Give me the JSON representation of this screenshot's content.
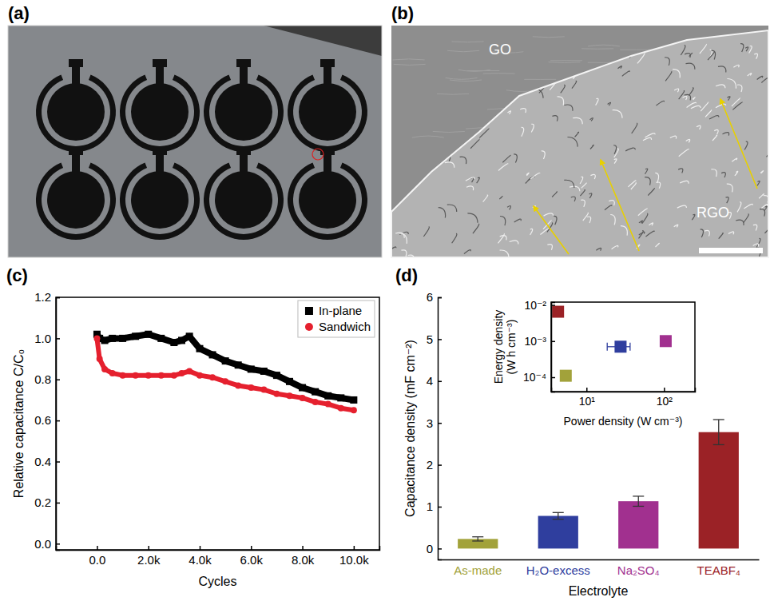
{
  "images": [
    {
      "panel_label": "(a)"
    },
    {
      "panel_label": "(b)",
      "texts": [
        "GO",
        "RGO"
      ]
    }
  ],
  "chart_data": [
    {
      "type": "line",
      "panel_label": "(c)",
      "x_label": "Cycles",
      "y_label": "Relative capacitance C/C₀",
      "x": [
        0,
        100,
        300,
        600,
        1000,
        1500,
        2000,
        2500,
        3000,
        3300,
        3600,
        4000,
        4500,
        5000,
        5500,
        6000,
        6500,
        7000,
        7500,
        8000,
        8500,
        9000,
        9500,
        10000
      ],
      "xlim": [
        -1600,
        11000
      ],
      "xticks": [
        {
          "value": 0,
          "label": "0.0"
        },
        {
          "value": 2000,
          "label": "2.0k"
        },
        {
          "value": 4000,
          "label": "4.0k"
        },
        {
          "value": 6000,
          "label": "6.0k"
        },
        {
          "value": 8000,
          "label": "8.0k"
        },
        {
          "value": 10000,
          "label": "10.0k"
        }
      ],
      "ylim": [
        -0.03,
        1.2
      ],
      "yticks": [
        {
          "value": 0,
          "label": "0.0"
        },
        0.2,
        0.4,
        0.6,
        0.8,
        {
          "value": 1,
          "label": "1.0"
        },
        1.2
      ],
      "legend": "upper right",
      "series": [
        {
          "name": "In-plane",
          "color": "#000000",
          "marker": "square",
          "values": [
            1.02,
            1.0,
            0.99,
            1.0,
            1.0,
            1.01,
            1.02,
            1.0,
            0.98,
            0.99,
            1.01,
            0.95,
            0.92,
            0.89,
            0.87,
            0.85,
            0.84,
            0.82,
            0.79,
            0.76,
            0.74,
            0.72,
            0.71,
            0.7
          ]
        },
        {
          "name": "Sandwich",
          "color": "#e5202e",
          "marker": "circle",
          "values": [
            1.0,
            0.9,
            0.85,
            0.83,
            0.82,
            0.82,
            0.82,
            0.82,
            0.82,
            0.83,
            0.84,
            0.82,
            0.81,
            0.79,
            0.77,
            0.76,
            0.75,
            0.73,
            0.72,
            0.71,
            0.69,
            0.68,
            0.66,
            0.65
          ]
        }
      ]
    },
    {
      "type": "bar",
      "panel_label": "(d)",
      "x_label": "Electrolyte",
      "y_label": "Capacitance density (mF cm⁻²)",
      "categories": [
        "As-made",
        "H₂O-excess",
        "Na₂SO₄",
        "TEABF₄"
      ],
      "values": [
        0.23,
        0.78,
        1.13,
        2.78
      ],
      "errors": [
        0.05,
        0.08,
        0.12,
        0.3
      ],
      "colors": [
        "#a2a23a",
        "#2f3e9e",
        "#a1308f",
        "#9b2226"
      ],
      "ylim": [
        -0.26,
        6
      ],
      "yticks": [
        0,
        1,
        2,
        3,
        4,
        5,
        6
      ]
    },
    {
      "type": "scatter",
      "log": true,
      "x_label": "Power density (W cm⁻³)",
      "y_label": "Energy density (W h cm⁻³)",
      "x": [
        5.4,
        27.5,
        105,
        4.3
      ],
      "values": [
        0.00011,
        0.0007,
        0.001,
        0.0065
      ],
      "x_errors": [
        null,
        9,
        null,
        null
      ],
      "colors": [
        "#a2a23a",
        "#2f3e9e",
        "#a1308f",
        "#9b2226"
      ],
      "marker": "square",
      "xlim": [
        3.5,
        250
      ],
      "xticks": [
        {
          "value": 10,
          "label": "10¹"
        },
        {
          "value": 100,
          "label": "10²"
        }
      ],
      "ylim": [
        4e-05,
        0.012
      ],
      "yticks": [
        {
          "value": 0.0001,
          "label": "10⁻⁴"
        },
        {
          "value": 0.001,
          "label": "10⁻³"
        },
        {
          "value": 0.01,
          "label": "10⁻²"
        }
      ]
    }
  ]
}
